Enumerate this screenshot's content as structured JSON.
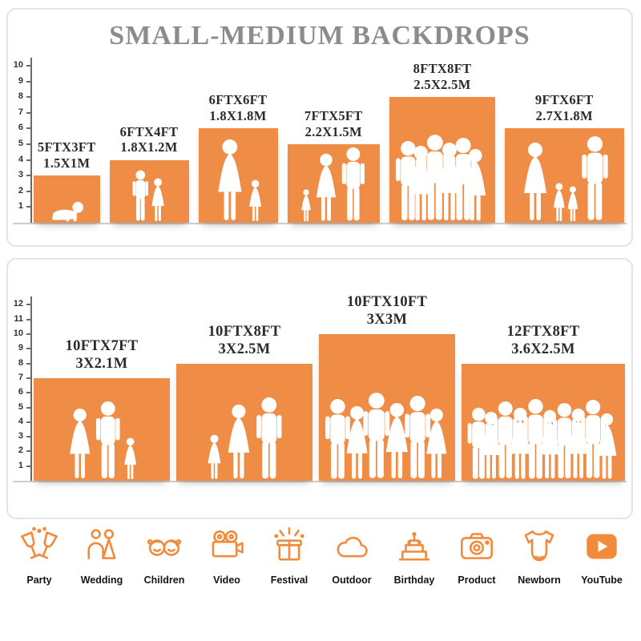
{
  "title": "SMALL-MEDIUM BACKDROPS",
  "colors": {
    "accent": "#EF8C45",
    "icon": "#F28A3C",
    "label": "#2B2B2B",
    "title": "#8C8C8C"
  },
  "panels": [
    {
      "name": "small-medium",
      "scale_max": 10,
      "backdrops": [
        {
          "size_ft": "5FTX3FT",
          "size_m": "1.5X1M",
          "width_ft": 5,
          "height_ft": 3,
          "figures": [
            {
              "type": "baby",
              "height_ft": 1.5
            }
          ]
        },
        {
          "size_ft": "6FTX4FT",
          "size_m": "1.8X1.2M",
          "width_ft": 6,
          "height_ft": 4,
          "figures": [
            {
              "type": "boy",
              "height_ft": 3.3
            },
            {
              "type": "girl",
              "height_ft": 2.8
            }
          ]
        },
        {
          "size_ft": "6FTX6FT",
          "size_m": "1.8X1.8M",
          "width_ft": 6,
          "height_ft": 6,
          "figures": [
            {
              "type": "woman",
              "height_ft": 5.3
            },
            {
              "type": "girl",
              "height_ft": 2.7
            }
          ]
        },
        {
          "size_ft": "7FTX5FT",
          "size_m": "2.2X1.5M",
          "width_ft": 7,
          "height_ft": 5,
          "figures": [
            {
              "type": "girl",
              "height_ft": 2.1
            },
            {
              "type": "woman",
              "height_ft": 4.4
            },
            {
              "type": "man",
              "height_ft": 4.8
            }
          ]
        },
        {
          "size_ft": "8FTX8FT",
          "size_m": "2.5X2.5M",
          "width_ft": 8,
          "height_ft": 8,
          "figures": [
            {
              "type": "man",
              "height_ft": 5.2
            },
            {
              "type": "woman",
              "height_ft": 4.9
            },
            {
              "type": "man",
              "height_ft": 5.6
            },
            {
              "type": "woman",
              "height_ft": 5.1
            },
            {
              "type": "man",
              "height_ft": 5.4
            },
            {
              "type": "woman",
              "height_ft": 4.7
            }
          ]
        },
        {
          "size_ft": "9FTX6FT",
          "size_m": "2.7X1.8M",
          "width_ft": 9,
          "height_ft": 6,
          "figures": [
            {
              "type": "woman",
              "height_ft": 5.1
            },
            {
              "type": "girl",
              "height_ft": 2.5
            },
            {
              "type": "girl",
              "height_ft": 2.3
            },
            {
              "type": "man",
              "height_ft": 5.5
            }
          ]
        }
      ]
    },
    {
      "name": "large",
      "scale_max": 12,
      "backdrops": [
        {
          "size_ft": "10FTX7FT",
          "size_m": "3X2.1M",
          "width_ft": 10,
          "height_ft": 7,
          "figures": [
            {
              "type": "woman",
              "height_ft": 4.9
            },
            {
              "type": "man",
              "height_ft": 5.4
            },
            {
              "type": "girl",
              "height_ft": 2.9
            }
          ]
        },
        {
          "size_ft": "10FTX8FT",
          "size_m": "3X2.5M",
          "width_ft": 10,
          "height_ft": 8,
          "figures": [
            {
              "type": "girl",
              "height_ft": 3.1
            },
            {
              "type": "woman",
              "height_ft": 5.2
            },
            {
              "type": "man",
              "height_ft": 5.7
            }
          ]
        },
        {
          "size_ft": "10FTX10FT",
          "size_m": "3X3M",
          "width_ft": 10,
          "height_ft": 10,
          "figures": [
            {
              "type": "man",
              "height_ft": 5.6
            },
            {
              "type": "woman",
              "height_ft": 5.1
            },
            {
              "type": "man",
              "height_ft": 6.0
            },
            {
              "type": "woman",
              "height_ft": 5.3
            },
            {
              "type": "man",
              "height_ft": 5.8
            },
            {
              "type": "woman",
              "height_ft": 4.9
            }
          ]
        },
        {
          "size_ft": "12FTX8FT",
          "size_m": "3.6X2.5M",
          "width_ft": 12,
          "height_ft": 8,
          "figures": [
            {
              "type": "man",
              "height_ft": 5.0
            },
            {
              "type": "woman",
              "height_ft": 4.7
            },
            {
              "type": "man",
              "height_ft": 5.4
            },
            {
              "type": "woman",
              "height_ft": 5.0
            },
            {
              "type": "man",
              "height_ft": 5.6
            },
            {
              "type": "woman",
              "height_ft": 4.8
            },
            {
              "type": "man",
              "height_ft": 5.3
            },
            {
              "type": "woman",
              "height_ft": 4.9
            },
            {
              "type": "man",
              "height_ft": 5.5
            },
            {
              "type": "woman",
              "height_ft": 4.6
            }
          ]
        }
      ]
    }
  ],
  "categories": [
    {
      "label": "Party",
      "icon": "party-icon"
    },
    {
      "label": "Wedding",
      "icon": "wedding-icon"
    },
    {
      "label": "Children",
      "icon": "children-icon"
    },
    {
      "label": "Video",
      "icon": "video-icon"
    },
    {
      "label": "Festival",
      "icon": "festival-icon"
    },
    {
      "label": "Outdoor",
      "icon": "outdoor-icon"
    },
    {
      "label": "Birthday",
      "icon": "birthday-icon"
    },
    {
      "label": "Product",
      "icon": "product-icon"
    },
    {
      "label": "Newborn",
      "icon": "newborn-icon"
    },
    {
      "label": "YouTube",
      "icon": "youtube-icon"
    }
  ]
}
